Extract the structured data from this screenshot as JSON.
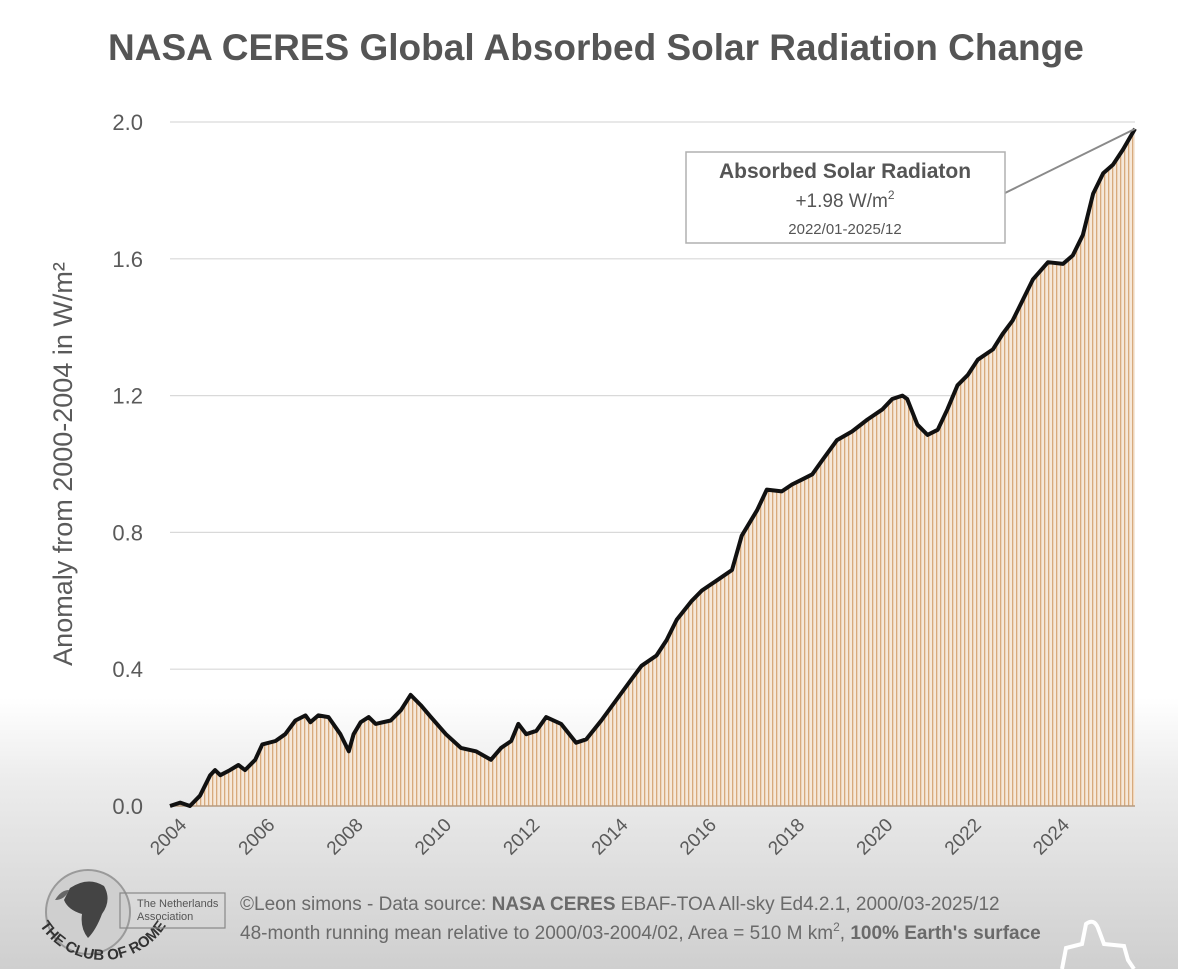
{
  "chart_data": {
    "type": "area",
    "title": "NASA CERES Global Absorbed Solar Radiation Change",
    "ylabel": "Anomaly from 2000-2004 in W/m²",
    "xlabel": "",
    "ylim": [
      0,
      2.0
    ],
    "xlim": [
      2004.1,
      2025.96
    ],
    "yticks": [
      "0.0",
      "0.4",
      "0.8",
      "1.2",
      "1.6",
      "2.0"
    ],
    "ytick_values": [
      0,
      0.4,
      0.8,
      1.2,
      1.6,
      2.0
    ],
    "xticks": [
      "2004",
      "2006",
      "2008",
      "2010",
      "2012",
      "2014",
      "2016",
      "2018",
      "2020",
      "2022",
      "2024"
    ],
    "grid": true,
    "colors": {
      "line": "#111111",
      "fill_stripe": "#d8aa7c",
      "fill_bg": "#f6e8d9",
      "grid": "#d9d9d9",
      "text": "#5a5a5a"
    },
    "annotation": {
      "title": "Absorbed Solar Radiaton",
      "value": "+1.98 W/m",
      "value_sup": "2",
      "period": "2022/01-2025/12",
      "points_to": [
        2025.96,
        1.98
      ]
    },
    "x": [
      2004.1,
      2004.33,
      2004.55,
      2004.78,
      2005.01,
      2005.12,
      2005.24,
      2005.46,
      2005.65,
      2005.8,
      2006.03,
      2006.19,
      2006.49,
      2006.71,
      2006.94,
      2007.17,
      2007.28,
      2007.46,
      2007.69,
      2007.96,
      2008.15,
      2008.26,
      2008.42,
      2008.6,
      2008.76,
      2009.1,
      2009.33,
      2009.55,
      2009.78,
      2010.01,
      2010.35,
      2010.69,
      2011.03,
      2011.37,
      2011.6,
      2011.83,
      2011.99,
      2012.17,
      2012.4,
      2012.62,
      2012.96,
      2013.3,
      2013.53,
      2013.87,
      2014.21,
      2014.55,
      2014.78,
      2015.12,
      2015.35,
      2015.58,
      2015.92,
      2016.15,
      2016.49,
      2016.83,
      2017.05,
      2017.4,
      2017.62,
      2017.96,
      2018.19,
      2018.42,
      2018.65,
      2018.87,
      2019.21,
      2019.55,
      2019.9,
      2020.24,
      2020.46,
      2020.69,
      2020.8,
      2021.03,
      2021.26,
      2021.49,
      2021.71,
      2021.94,
      2022.17,
      2022.4,
      2022.74,
      2022.96,
      2023.19,
      2023.42,
      2023.65,
      2023.99,
      2024.33,
      2024.55,
      2024.78,
      2025.01,
      2025.24,
      2025.46,
      2025.69,
      2025.96
    ],
    "values": [
      0.0,
      0.01,
      0.0,
      0.03,
      0.09,
      0.105,
      0.09,
      0.105,
      0.12,
      0.105,
      0.135,
      0.18,
      0.19,
      0.21,
      0.25,
      0.265,
      0.245,
      0.265,
      0.26,
      0.21,
      0.16,
      0.21,
      0.245,
      0.26,
      0.24,
      0.25,
      0.28,
      0.325,
      0.295,
      0.26,
      0.21,
      0.17,
      0.16,
      0.135,
      0.17,
      0.19,
      0.24,
      0.21,
      0.22,
      0.26,
      0.24,
      0.185,
      0.195,
      0.25,
      0.31,
      0.37,
      0.41,
      0.44,
      0.485,
      0.545,
      0.6,
      0.63,
      0.66,
      0.69,
      0.79,
      0.865,
      0.925,
      0.92,
      0.94,
      0.955,
      0.97,
      1.01,
      1.07,
      1.095,
      1.13,
      1.16,
      1.19,
      1.2,
      1.19,
      1.115,
      1.085,
      1.1,
      1.16,
      1.23,
      1.26,
      1.305,
      1.335,
      1.38,
      1.42,
      1.48,
      1.54,
      1.59,
      1.585,
      1.61,
      1.67,
      1.79,
      1.85,
      1.875,
      1.92,
      1.98
    ]
  },
  "footer": {
    "credit_prefix": "©Leon simons - Data source: ",
    "credit_bold": "NASA CERES",
    "credit_suffix": " EBAF-TOA All-sky Ed4.2.1, 2000/03-2025/12",
    "note_prefix": "48-month running mean relative to 2000/03-2004/02, Area = 510 M km",
    "note_sup": "2",
    "note_comma": ", ",
    "note_bold": "100% Earth's surface"
  },
  "logo": {
    "name": "THE CLUB OF ROME",
    "sub_line1": "The Netherlands",
    "sub_line2": "Association"
  }
}
